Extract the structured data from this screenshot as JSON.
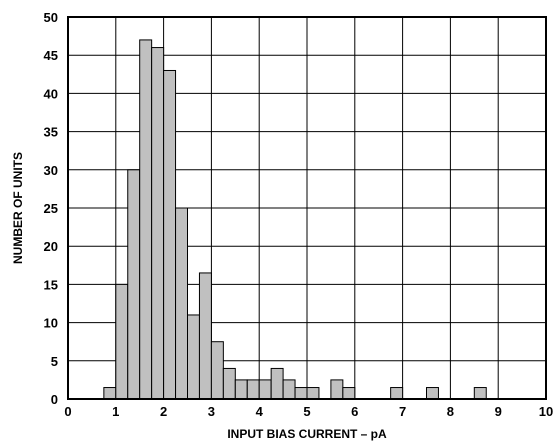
{
  "chart_data": {
    "type": "bar",
    "title": "",
    "xlabel": "INPUT BIAS CURRENT – pA",
    "ylabel": "NUMBER OF UNITS",
    "xlim": [
      0,
      10
    ],
    "ylim": [
      0,
      50
    ],
    "x_ticks": [
      "0",
      "1",
      "2",
      "3",
      "4",
      "5",
      "6",
      "7",
      "8",
      "9",
      "10"
    ],
    "y_ticks": [
      "0",
      "5",
      "10",
      "15",
      "20",
      "25",
      "30",
      "35",
      "40",
      "45",
      "50"
    ],
    "grid": true,
    "bin_width": 0.25,
    "bars_fill": "#c0c0c0",
    "bars_stroke": "#000000",
    "bins": [
      {
        "x_start": 0.75,
        "value": 1.5
      },
      {
        "x_start": 1.0,
        "value": 15
      },
      {
        "x_start": 1.25,
        "value": 30
      },
      {
        "x_start": 1.5,
        "value": 47
      },
      {
        "x_start": 1.75,
        "value": 46
      },
      {
        "x_start": 2.0,
        "value": 43
      },
      {
        "x_start": 2.25,
        "value": 25
      },
      {
        "x_start": 2.5,
        "value": 11
      },
      {
        "x_start": 2.75,
        "value": 16.5
      },
      {
        "x_start": 3.0,
        "value": 7.5
      },
      {
        "x_start": 3.25,
        "value": 4
      },
      {
        "x_start": 3.5,
        "value": 2.5
      },
      {
        "x_start": 3.75,
        "value": 2.5
      },
      {
        "x_start": 4.0,
        "value": 2.5
      },
      {
        "x_start": 4.25,
        "value": 4
      },
      {
        "x_start": 4.5,
        "value": 2.5
      },
      {
        "x_start": 4.75,
        "value": 1.5
      },
      {
        "x_start": 5.0,
        "value": 1.5
      },
      {
        "x_start": 5.5,
        "value": 2.5
      },
      {
        "x_start": 5.75,
        "value": 1.5
      },
      {
        "x_start": 6.75,
        "value": 1.5
      },
      {
        "x_start": 7.5,
        "value": 1.5
      },
      {
        "x_start": 8.5,
        "value": 1.5
      }
    ]
  }
}
